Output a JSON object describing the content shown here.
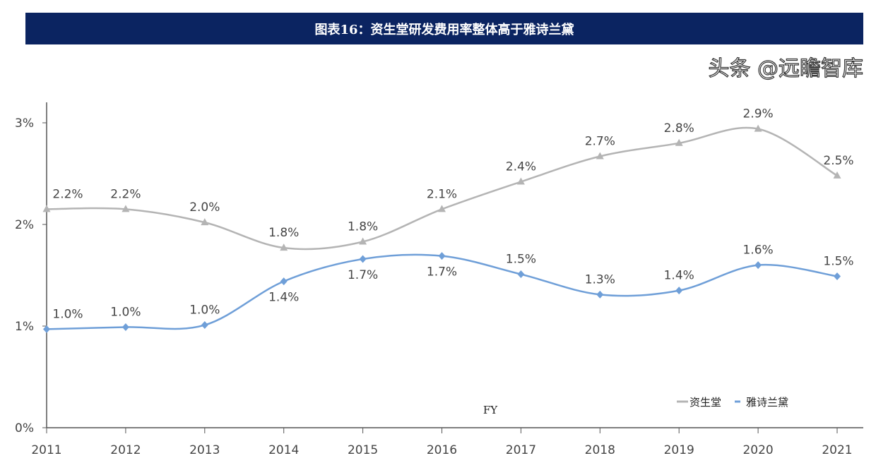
{
  "title": "图表16：资生堂研发费用率整体高于雅诗兰黛",
  "watermark": "头条 @远瞻智库",
  "chart_data": {
    "type": "line",
    "title": "图表16：资生堂研发费用率整体高于雅诗兰黛",
    "xlabel": "FY",
    "ylabel": "",
    "categories": [
      "2011",
      "2012",
      "2013",
      "2014",
      "2015",
      "2016",
      "2017",
      "2018",
      "2019",
      "2020",
      "2021"
    ],
    "ylim": [
      0,
      3
    ],
    "yticks": [
      "0%",
      "1%",
      "2%",
      "3%"
    ],
    "grid": false,
    "legend_position": "bottom-right",
    "series": [
      {
        "name": "资生堂",
        "color": "#b4b4b4",
        "marker": "triangle",
        "values": [
          2.15,
          2.15,
          2.02,
          1.77,
          1.83,
          2.15,
          2.42,
          2.67,
          2.8,
          2.94,
          2.48
        ],
        "labels": [
          "2.2%",
          "2.2%",
          "2.0%",
          "1.8%",
          "1.8%",
          "2.1%",
          "2.4%",
          "2.7%",
          "2.8%",
          "2.9%",
          "2.5%"
        ]
      },
      {
        "name": "雅诗兰黛",
        "color": "#6f9fd8",
        "marker": "diamond",
        "values": [
          0.97,
          0.99,
          1.01,
          1.44,
          1.66,
          1.69,
          1.51,
          1.31,
          1.35,
          1.6,
          1.49
        ],
        "labels": [
          "1.0%",
          "1.0%",
          "1.0%",
          "1.4%",
          "1.7%",
          "1.7%",
          "1.5%",
          "1.3%",
          "1.4%",
          "1.6%",
          "1.5%"
        ]
      }
    ]
  }
}
